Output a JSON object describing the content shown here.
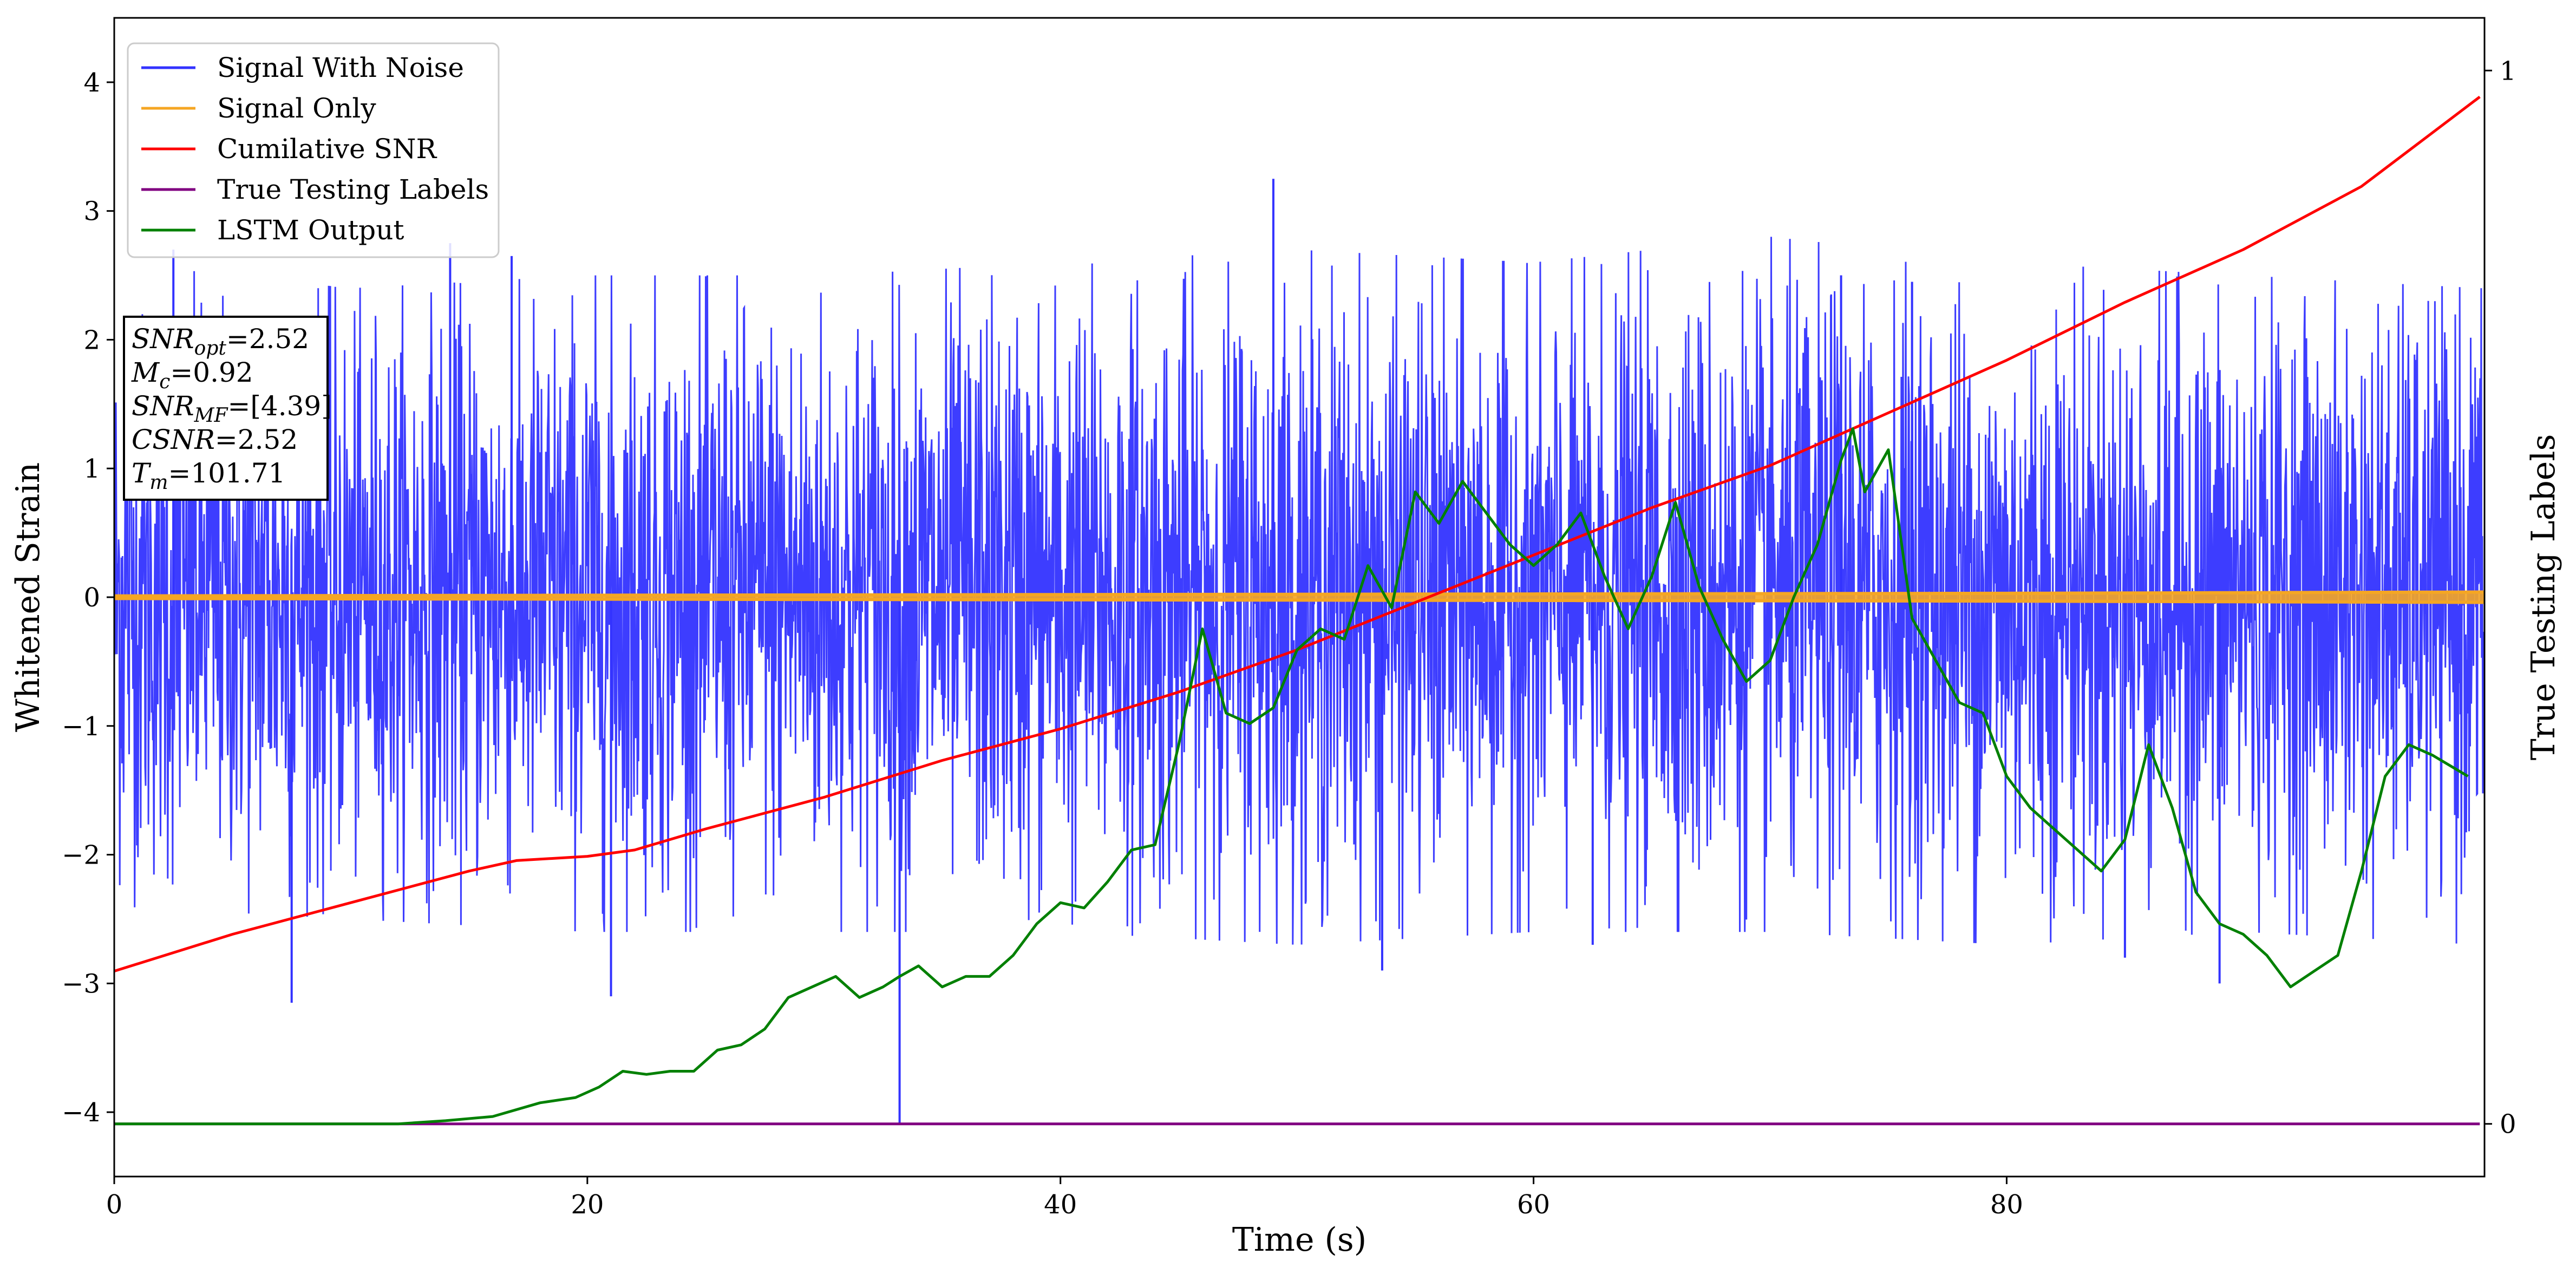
{
  "chart_data": {
    "type": "line",
    "title": "",
    "xlabel": "Time (s)",
    "ylabel": "Whitened Strain",
    "y2label": "True Testing Labels",
    "xlim": [
      0,
      100.2
    ],
    "ylim": [
      -4.5,
      4.5
    ],
    "y2lim": [
      -0.05,
      1.05
    ],
    "x_ticks": [
      0,
      20,
      40,
      60,
      80
    ],
    "y_ticks": [
      -4,
      -3,
      -2,
      -1,
      0,
      1,
      2,
      3,
      4
    ],
    "y2_ticks": [
      0,
      1
    ],
    "legend_position": "upper-left",
    "info_box": {
      "lines": [
        {
          "symbol": "SNR",
          "sub": "opt",
          "value": "=2.52"
        },
        {
          "symbol": "M",
          "sub": "c",
          "value": "=0.92"
        },
        {
          "symbol": "SNR",
          "sub": "MF",
          "value": "=[4.39]"
        },
        {
          "symbol": "CSNR",
          "sub": "",
          "value": "=2.52"
        },
        {
          "symbol": "T",
          "sub": "m",
          "value": "=101.71"
        }
      ]
    },
    "series": [
      {
        "name": "Signal With Noise",
        "color": "#3333ff",
        "axis": "left",
        "description_level": "noise band approx +/-1.1 sigma with spikes",
        "envelope_upper": [
          [
            0,
            2.6
          ],
          [
            10,
            2.4
          ],
          [
            20,
            2.5
          ],
          [
            30,
            2.5
          ],
          [
            40,
            2.6
          ],
          [
            50,
            2.7
          ],
          [
            60,
            2.6
          ],
          [
            70,
            2.8
          ],
          [
            80,
            2.6
          ],
          [
            90,
            2.5
          ],
          [
            100,
            2.4
          ]
        ],
        "envelope_lower": [
          [
            0,
            -2.4
          ],
          [
            10,
            -2.5
          ],
          [
            20,
            -2.6
          ],
          [
            30,
            -2.6
          ],
          [
            40,
            -2.6
          ],
          [
            50,
            -2.7
          ],
          [
            60,
            -2.6
          ],
          [
            70,
            -2.6
          ],
          [
            80,
            -2.7
          ],
          [
            90,
            -2.6
          ],
          [
            100,
            -2.7
          ]
        ],
        "spikes": [
          [
            2.5,
            2.7
          ],
          [
            7.5,
            -3.15
          ],
          [
            14.2,
            2.75
          ],
          [
            16.8,
            2.65
          ],
          [
            21,
            -3.1
          ],
          [
            33.2,
            -4.1
          ],
          [
            49,
            3.25
          ],
          [
            53.6,
            -2.9
          ],
          [
            62.5,
            -2.7
          ],
          [
            73,
            2.5
          ],
          [
            76,
            2.45
          ],
          [
            85,
            -2.8
          ],
          [
            89,
            -3.0
          ]
        ]
      },
      {
        "name": "Signal Only",
        "color": "#f5a623",
        "axis": "left",
        "amplitude": [
          [
            0,
            0.01
          ],
          [
            20,
            0.015
          ],
          [
            40,
            0.02
          ],
          [
            60,
            0.025
          ],
          [
            80,
            0.03
          ],
          [
            100,
            0.04
          ]
        ]
      },
      {
        "name": "Cumilative SNR",
        "color": "#ff0000",
        "axis": "right",
        "points": [
          [
            0,
            0.145
          ],
          [
            5,
            0.18
          ],
          [
            10,
            0.21
          ],
          [
            15,
            0.24
          ],
          [
            17,
            0.25
          ],
          [
            20,
            0.254
          ],
          [
            22,
            0.26
          ],
          [
            25,
            0.28
          ],
          [
            30,
            0.31
          ],
          [
            35,
            0.345
          ],
          [
            40,
            0.375
          ],
          [
            45,
            0.41
          ],
          [
            50,
            0.45
          ],
          [
            55,
            0.495
          ],
          [
            60,
            0.54
          ],
          [
            65,
            0.585
          ],
          [
            70,
            0.625
          ],
          [
            75,
            0.675
          ],
          [
            80,
            0.725
          ],
          [
            85,
            0.78
          ],
          [
            90,
            0.83
          ],
          [
            95,
            0.89
          ],
          [
            100,
            0.975
          ]
        ]
      },
      {
        "name": "True Testing Labels",
        "color": "#800080",
        "axis": "right",
        "points": [
          [
            0,
            0
          ],
          [
            100,
            0
          ]
        ]
      },
      {
        "name": "LSTM Output",
        "color": "#008000",
        "axis": "right",
        "points": [
          [
            0,
            0
          ],
          [
            12,
            0
          ],
          [
            14,
            0.003
          ],
          [
            16,
            0.007
          ],
          [
            18,
            0.02
          ],
          [
            19.5,
            0.025
          ],
          [
            20.5,
            0.035
          ],
          [
            21.5,
            0.05
          ],
          [
            22.5,
            0.047
          ],
          [
            23.5,
            0.05
          ],
          [
            24.5,
            0.05
          ],
          [
            25.5,
            0.07
          ],
          [
            26.5,
            0.075
          ],
          [
            27.5,
            0.09
          ],
          [
            28.5,
            0.12
          ],
          [
            29.5,
            0.13
          ],
          [
            30.5,
            0.14
          ],
          [
            31.5,
            0.12
          ],
          [
            32.5,
            0.13
          ],
          [
            33.2,
            0.14
          ],
          [
            34,
            0.15
          ],
          [
            35,
            0.13
          ],
          [
            36,
            0.14
          ],
          [
            37,
            0.14
          ],
          [
            38,
            0.16
          ],
          [
            39,
            0.19
          ],
          [
            40,
            0.21
          ],
          [
            41,
            0.205
          ],
          [
            42,
            0.23
          ],
          [
            43,
            0.26
          ],
          [
            44,
            0.265
          ],
          [
            45,
            0.36
          ],
          [
            46,
            0.47
          ],
          [
            47,
            0.39
          ],
          [
            48,
            0.38
          ],
          [
            49,
            0.395
          ],
          [
            50,
            0.45
          ],
          [
            51,
            0.47
          ],
          [
            52,
            0.46
          ],
          [
            53,
            0.53
          ],
          [
            54,
            0.49
          ],
          [
            55,
            0.6
          ],
          [
            56,
            0.57
          ],
          [
            57,
            0.61
          ],
          [
            58,
            0.58
          ],
          [
            59,
            0.55
          ],
          [
            60,
            0.53
          ],
          [
            61,
            0.55
          ],
          [
            62,
            0.58
          ],
          [
            63,
            0.52
          ],
          [
            64,
            0.47
          ],
          [
            65,
            0.52
          ],
          [
            66,
            0.59
          ],
          [
            67,
            0.51
          ],
          [
            68,
            0.46
          ],
          [
            69,
            0.42
          ],
          [
            70,
            0.44
          ],
          [
            71,
            0.5
          ],
          [
            72,
            0.55
          ],
          [
            73,
            0.63
          ],
          [
            73.5,
            0.66
          ],
          [
            74,
            0.6
          ],
          [
            75,
            0.64
          ],
          [
            76,
            0.48
          ],
          [
            77,
            0.44
          ],
          [
            78,
            0.4
          ],
          [
            79,
            0.39
          ],
          [
            80,
            0.33
          ],
          [
            81,
            0.3
          ],
          [
            82,
            0.28
          ],
          [
            83,
            0.26
          ],
          [
            84,
            0.24
          ],
          [
            85,
            0.27
          ],
          [
            86,
            0.36
          ],
          [
            87,
            0.3
          ],
          [
            88,
            0.22
          ],
          [
            89,
            0.19
          ],
          [
            90,
            0.18
          ],
          [
            91,
            0.16
          ],
          [
            92,
            0.13
          ],
          [
            93,
            0.145
          ],
          [
            94,
            0.16
          ],
          [
            95,
            0.24
          ],
          [
            96,
            0.33
          ],
          [
            97,
            0.36
          ],
          [
            98,
            0.35
          ],
          [
            99.5,
            0.33
          ]
        ]
      }
    ]
  }
}
